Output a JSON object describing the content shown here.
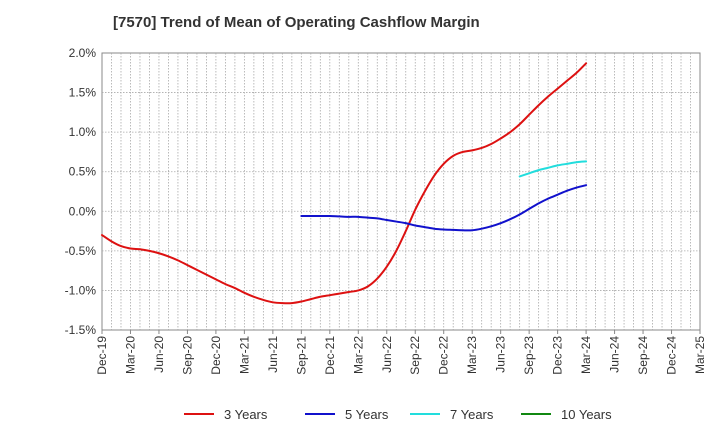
{
  "chart_data": {
    "type": "line",
    "title": "[7570]  Trend of Mean of Operating Cashflow Margin",
    "xlabel": "",
    "ylabel": "",
    "x_categories": [
      "Dec-19",
      "Mar-20",
      "Jun-20",
      "Sep-20",
      "Dec-20",
      "Mar-21",
      "Jun-21",
      "Sep-21",
      "Dec-21",
      "Mar-22",
      "Jun-22",
      "Sep-22",
      "Dec-22",
      "Mar-23",
      "Jun-23",
      "Sep-23",
      "Dec-23",
      "Mar-24",
      "Jun-24",
      "Sep-24",
      "Dec-24",
      "Mar-25"
    ],
    "y_ticks": [
      "2.0%",
      "1.5%",
      "1.0%",
      "0.5%",
      "0.0%",
      "-0.5%",
      "-1.0%",
      "-1.5%"
    ],
    "ylim": [
      -1.5,
      2.0
    ],
    "y_unit": "%",
    "grid": true,
    "legend_position": "bottom",
    "series": [
      {
        "name": "3 Years",
        "color": "#dd1111",
        "points": [
          [
            "Dec-19",
            -0.3
          ],
          [
            "Jan-20",
            -0.38
          ],
          [
            "Feb-20",
            -0.44
          ],
          [
            "Mar-20",
            -0.47
          ],
          [
            "Apr-20",
            -0.48
          ],
          [
            "May-20",
            -0.5
          ],
          [
            "Jun-20",
            -0.53
          ],
          [
            "Jul-20",
            -0.57
          ],
          [
            "Aug-20",
            -0.62
          ],
          [
            "Sep-20",
            -0.68
          ],
          [
            "Oct-20",
            -0.74
          ],
          [
            "Nov-20",
            -0.8
          ],
          [
            "Dec-20",
            -0.86
          ],
          [
            "Jan-21",
            -0.92
          ],
          [
            "Feb-21",
            -0.97
          ],
          [
            "Mar-21",
            -1.03
          ],
          [
            "Apr-21",
            -1.08
          ],
          [
            "May-21",
            -1.12
          ],
          [
            "Jun-21",
            -1.15
          ],
          [
            "Jul-21",
            -1.16
          ],
          [
            "Aug-21",
            -1.16
          ],
          [
            "Sep-21",
            -1.14
          ],
          [
            "Oct-21",
            -1.11
          ],
          [
            "Nov-21",
            -1.08
          ],
          [
            "Dec-21",
            -1.06
          ],
          [
            "Jan-22",
            -1.04
          ],
          [
            "Feb-22",
            -1.02
          ],
          [
            "Mar-22",
            -1.0
          ],
          [
            "Apr-22",
            -0.95
          ],
          [
            "May-22",
            -0.85
          ],
          [
            "Jun-22",
            -0.7
          ],
          [
            "Jul-22",
            -0.5
          ],
          [
            "Aug-22",
            -0.25
          ],
          [
            "Sep-22",
            0.02
          ],
          [
            "Oct-22",
            0.25
          ],
          [
            "Nov-22",
            0.45
          ],
          [
            "Dec-22",
            0.6
          ],
          [
            "Jan-23",
            0.7
          ],
          [
            "Feb-23",
            0.75
          ],
          [
            "Mar-23",
            0.77
          ],
          [
            "Apr-23",
            0.8
          ],
          [
            "May-23",
            0.85
          ],
          [
            "Jun-23",
            0.92
          ],
          [
            "Jul-23",
            1.0
          ],
          [
            "Aug-23",
            1.1
          ],
          [
            "Sep-23",
            1.22
          ],
          [
            "Oct-23",
            1.34
          ],
          [
            "Nov-23",
            1.45
          ],
          [
            "Dec-23",
            1.55
          ],
          [
            "Jan-24",
            1.65
          ],
          [
            "Feb-24",
            1.75
          ],
          [
            "Mar-24",
            1.87
          ]
        ]
      },
      {
        "name": "5 Years",
        "color": "#1111cc",
        "points": [
          [
            "Sep-21",
            -0.06
          ],
          [
            "Oct-21",
            -0.06
          ],
          [
            "Nov-21",
            -0.06
          ],
          [
            "Dec-21",
            -0.06
          ],
          [
            "Jan-22",
            -0.065
          ],
          [
            "Feb-22",
            -0.07
          ],
          [
            "Mar-22",
            -0.07
          ],
          [
            "Apr-22",
            -0.08
          ],
          [
            "May-22",
            -0.09
          ],
          [
            "Jun-22",
            -0.11
          ],
          [
            "Jul-22",
            -0.13
          ],
          [
            "Aug-22",
            -0.15
          ],
          [
            "Sep-22",
            -0.18
          ],
          [
            "Oct-22",
            -0.2
          ],
          [
            "Nov-22",
            -0.22
          ],
          [
            "Dec-22",
            -0.23
          ],
          [
            "Jan-23",
            -0.235
          ],
          [
            "Feb-23",
            -0.24
          ],
          [
            "Mar-23",
            -0.24
          ],
          [
            "Apr-23",
            -0.22
          ],
          [
            "May-23",
            -0.19
          ],
          [
            "Jun-23",
            -0.15
          ],
          [
            "Jul-23",
            -0.1
          ],
          [
            "Aug-23",
            -0.04
          ],
          [
            "Sep-23",
            0.03
          ],
          [
            "Oct-23",
            0.1
          ],
          [
            "Nov-23",
            0.16
          ],
          [
            "Dec-23",
            0.21
          ],
          [
            "Jan-24",
            0.26
          ],
          [
            "Feb-24",
            0.3
          ],
          [
            "Mar-24",
            0.33
          ]
        ]
      },
      {
        "name": "7 Years",
        "color": "#22dddd",
        "points": [
          [
            "Aug-23",
            0.44
          ],
          [
            "Sep-23",
            0.48
          ],
          [
            "Oct-23",
            0.52
          ],
          [
            "Nov-23",
            0.55
          ],
          [
            "Dec-23",
            0.58
          ],
          [
            "Jan-24",
            0.6
          ],
          [
            "Feb-24",
            0.62
          ],
          [
            "Mar-24",
            0.63
          ]
        ]
      },
      {
        "name": "10 Years",
        "color": "#118811",
        "points": []
      }
    ]
  }
}
